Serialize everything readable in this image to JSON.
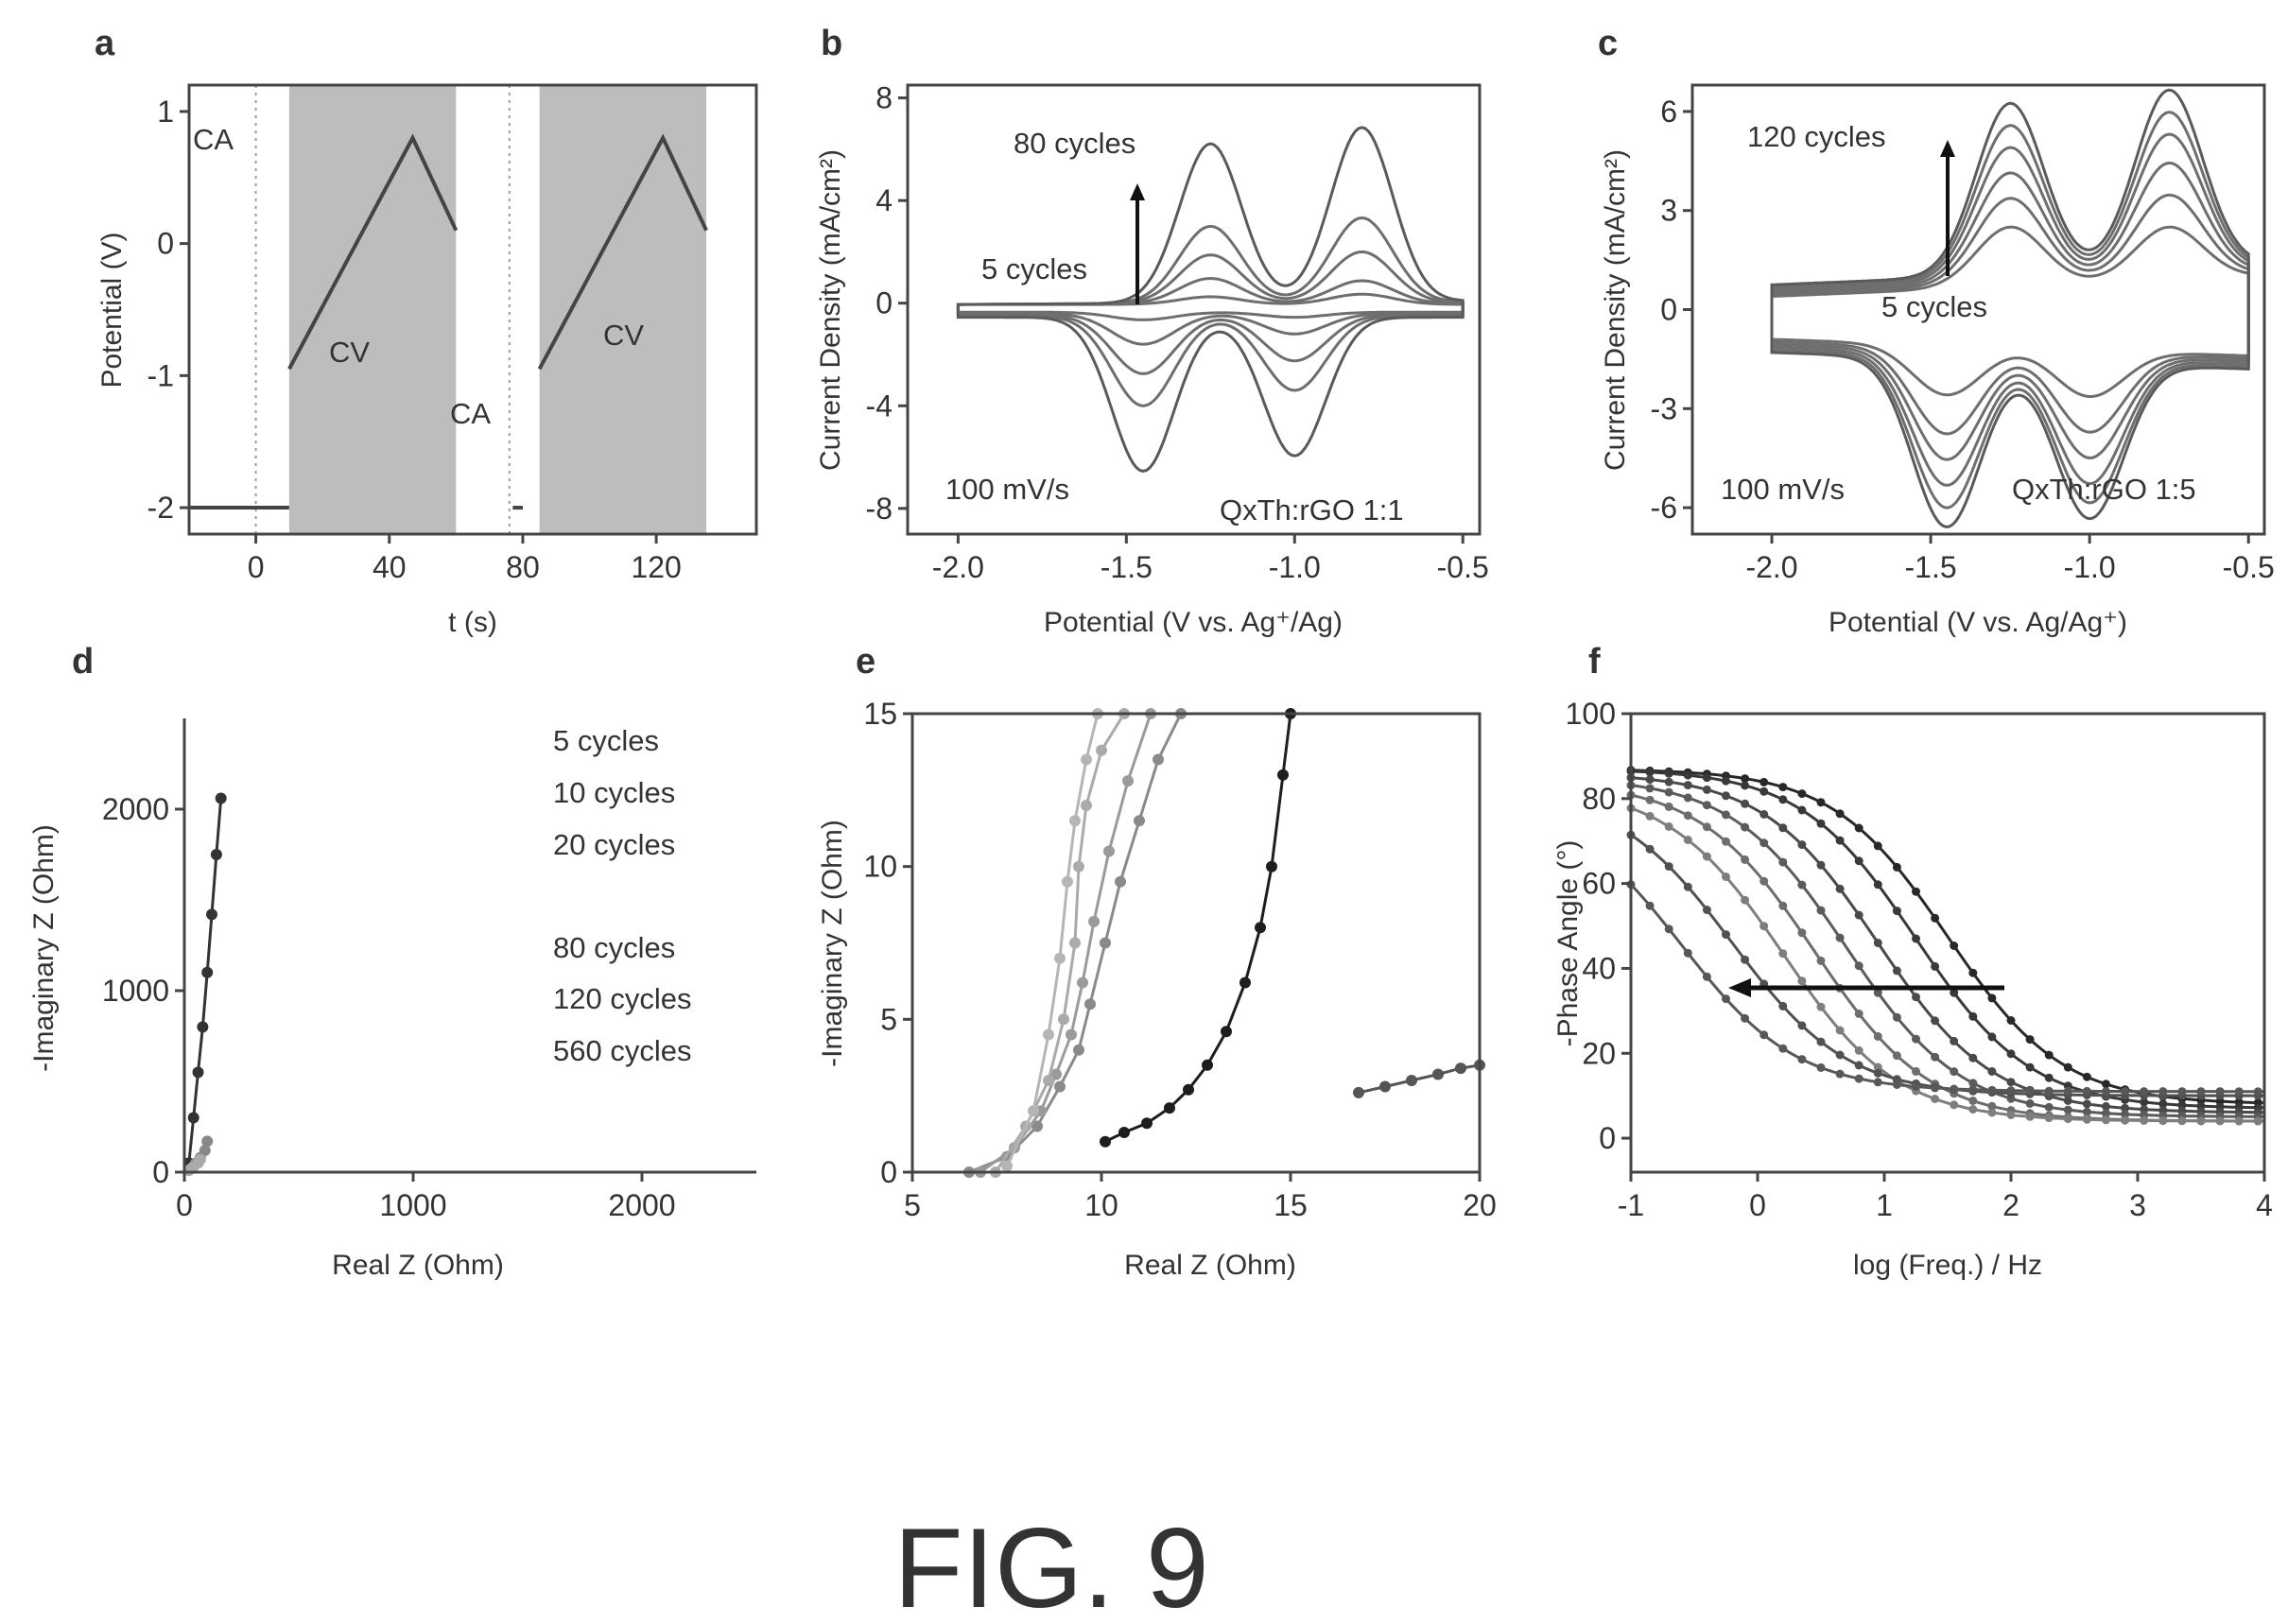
{
  "figure_caption": "FIG. 9",
  "chart_data": [
    {
      "panel": "a",
      "type": "line",
      "xlabel": "t (s)",
      "ylabel": "Potential (V)",
      "xlim": [
        -20,
        150
      ],
      "ylim": [
        -2.2,
        1.2
      ],
      "xticks": [
        0,
        40,
        80,
        120
      ],
      "yticks": [
        1,
        0,
        -1,
        -2
      ],
      "shaded_regions": [
        [
          10,
          60
        ],
        [
          85,
          135
        ]
      ],
      "annotations": [
        "CA",
        "CV",
        "CA",
        "CV"
      ],
      "series": [
        {
          "x": [
            -20,
            0,
            0.5,
            3,
            5.5,
            6,
            10
          ],
          "y": [
            -2.0,
            -2.0,
            -2.0,
            -2.0,
            -2.0,
            -2.0,
            -2.0
          ]
        },
        {
          "x": [
            10,
            47,
            60
          ],
          "y": [
            -0.95,
            0.8,
            0.1
          ]
        },
        {
          "x": [
            85,
            122,
            135
          ],
          "y": [
            -0.95,
            0.8,
            0.1
          ]
        }
      ]
    },
    {
      "panel": "b",
      "type": "line",
      "xlabel": "Potential (V vs. Ag⁺/Ag)",
      "ylabel": "Current Density (mA/cm²)",
      "xlim": [
        -2.15,
        -0.45
      ],
      "ylim": [
        -9,
        8.5
      ],
      "xticks": [
        -2.0,
        -1.5,
        -1.0,
        -0.5
      ],
      "yticks": [
        8,
        4,
        0,
        -4,
        -8
      ],
      "annotations": [
        "80 cycles",
        "5 cycles",
        "100 mV/s",
        "QxTh:rGO 1:1"
      ],
      "peaks": {
        "oxidation_potentials": [
          -1.25,
          -0.8
        ],
        "reduction_potentials": [
          -1.45,
          -1.0
        ]
      },
      "curves": [
        {
          "cycles": "5",
          "anodic_peaks": [
            0.3,
            0.4
          ],
          "cathodic_peaks": [
            -0.3,
            -0.2
          ]
        },
        {
          "anodic_peaks": [
            1.0,
            0.9
          ],
          "cathodic_peaks": [
            -1.2,
            -0.8
          ]
        },
        {
          "anodic_peaks": [
            1.9,
            2.0
          ],
          "cathodic_peaks": [
            -2.3,
            -1.8
          ]
        },
        {
          "anodic_peaks": [
            3.0,
            3.3
          ],
          "cathodic_peaks": [
            -3.5,
            -2.9
          ]
        },
        {
          "cycles": "80",
          "anodic_peaks": [
            6.2,
            6.8
          ],
          "cathodic_peaks": [
            -6.0,
            -5.4
          ]
        }
      ]
    },
    {
      "panel": "c",
      "type": "line",
      "xlabel": "Potential (V vs. Ag/Ag⁺)",
      "ylabel": "Current Density (mA/cm²)",
      "xlim": [
        -2.25,
        -0.45
      ],
      "ylim": [
        -6.8,
        6.8
      ],
      "xticks": [
        -2.0,
        -1.5,
        -1.0,
        -0.5
      ],
      "yticks": [
        6,
        3,
        0,
        -3,
        -6
      ],
      "annotations": [
        "120 cycles",
        "5 cycles",
        "100 mV/s",
        "QxTh:rGO 1:5"
      ],
      "peaks": {
        "oxidation_potentials": [
          -1.25,
          -0.75
        ],
        "reduction_potentials": [
          -1.45,
          -1.0
        ]
      },
      "curves": [
        {
          "cycles": "5",
          "anodic_peaks": [
            1.8,
            1.6
          ],
          "cathodic_peaks": [
            -1.5,
            -1.4
          ]
        },
        {
          "anodic_peaks": [
            2.6,
            2.5
          ],
          "cathodic_peaks": [
            -2.6,
            -2.4
          ]
        },
        {
          "anodic_peaks": [
            3.3,
            3.4
          ],
          "cathodic_peaks": [
            -3.3,
            -3.1
          ]
        },
        {
          "anodic_peaks": [
            4.0,
            4.2
          ],
          "cathodic_peaks": [
            -4.0,
            -3.8
          ]
        },
        {
          "anodic_peaks": [
            4.6,
            4.8
          ],
          "cathodic_peaks": [
            -4.6,
            -4.3
          ]
        },
        {
          "cycles": "120",
          "anodic_peaks": [
            5.2,
            5.4
          ],
          "cathodic_peaks": [
            -5.1,
            -4.7
          ]
        }
      ]
    },
    {
      "panel": "d",
      "type": "scatter",
      "xlabel": "Real Z (Ohm)",
      "ylabel": "-Imaginary Z (Ohm)",
      "xlim": [
        0,
        2500
      ],
      "ylim": [
        0,
        2500
      ],
      "xticks": [
        0,
        1000,
        2000
      ],
      "yticks": [
        0,
        1000,
        2000
      ],
      "legend": [
        "5 cycles",
        "10 cycles",
        "20 cycles",
        "80 cycles",
        "120 cycles",
        "560 cycles"
      ],
      "legend_colors": [
        "#333333",
        "#777777",
        "#bbbbbb",
        "#aaaaaa",
        "#8a8a8a",
        "#444444"
      ],
      "series": [
        {
          "name": "560 cycles",
          "x": [
            20,
            40,
            60,
            80,
            100,
            120,
            140,
            160
          ],
          "y": [
            50,
            300,
            550,
            800,
            1100,
            1420,
            1750,
            2060
          ]
        },
        {
          "x": [
            30,
            50,
            70,
            90,
            100
          ],
          "y": [
            20,
            50,
            80,
            120,
            170
          ]
        },
        {
          "x": [
            20,
            40,
            60,
            70
          ],
          "y": [
            10,
            30,
            50,
            70
          ]
        }
      ]
    },
    {
      "panel": "e",
      "type": "scatter",
      "xlabel": "Real Z (Ohm)",
      "ylabel": "-Imaginary Z (Ohm)",
      "xlim": [
        5,
        20
      ],
      "ylim": [
        0,
        15
      ],
      "xticks": [
        5,
        10,
        15,
        20
      ],
      "yticks": [
        0,
        5,
        10,
        15
      ],
      "series": [
        {
          "x": [
            10.1,
            10.6,
            11.2,
            11.8,
            12.3,
            12.8,
            13.3,
            13.8,
            14.2,
            14.5,
            14.8,
            15.0
          ],
          "y": [
            1.0,
            1.3,
            1.6,
            2.1,
            2.7,
            3.5,
            4.6,
            6.2,
            8.0,
            10.0,
            13.0,
            15.0
          ]
        },
        {
          "x": [
            16.8,
            17.5,
            18.2,
            18.9,
            19.5,
            20.0
          ],
          "y": [
            2.6,
            2.8,
            3.0,
            3.2,
            3.4,
            3.5
          ]
        },
        {
          "x": [
            6.5,
            7.5,
            8.3,
            8.9,
            9.4,
            9.7,
            10.1,
            10.5,
            11.0,
            11.5,
            12.1
          ],
          "y": [
            0.0,
            0.5,
            1.5,
            2.8,
            4.0,
            5.5,
            7.5,
            9.5,
            11.5,
            13.5,
            15.0
          ]
        },
        {
          "x": [
            6.8,
            7.7,
            8.4,
            8.8,
            9.2,
            9.5,
            9.8,
            10.2,
            10.7,
            11.3
          ],
          "y": [
            0.0,
            0.8,
            2.0,
            3.2,
            4.5,
            6.2,
            8.2,
            10.5,
            12.8,
            15.0
          ]
        },
        {
          "x": [
            7.2,
            8.0,
            8.6,
            9.0,
            9.3,
            9.4,
            9.6,
            10.0,
            10.6
          ],
          "y": [
            0.0,
            1.5,
            3.0,
            5.0,
            7.5,
            10.0,
            12.0,
            13.8,
            15.0
          ]
        },
        {
          "x": [
            7.5,
            8.2,
            8.6,
            8.9,
            9.1,
            9.3,
            9.6,
            9.9
          ],
          "y": [
            0.2,
            2.0,
            4.5,
            7.0,
            9.5,
            11.5,
            13.5,
            15.0
          ]
        }
      ]
    },
    {
      "panel": "f",
      "type": "line",
      "xlabel": "log (Freq.) / Hz",
      "ylabel": "-Phase Angle (°)",
      "xlim": [
        -1,
        4
      ],
      "ylim": [
        -8,
        100
      ],
      "xticks": [
        -1,
        0,
        1,
        2,
        3,
        4
      ],
      "yticks": [
        0,
        20,
        40,
        60,
        80,
        100
      ],
      "curves": [
        {
          "low_freq_angle": 87,
          "midpoint_log_freq": 1.5,
          "high_freq_angle": 8
        },
        {
          "low_freq_angle": 87,
          "midpoint_log_freq": 1.25,
          "high_freq_angle": 7
        },
        {
          "low_freq_angle": 86,
          "midpoint_log_freq": 0.95,
          "high_freq_angle": 6
        },
        {
          "low_freq_angle": 85,
          "midpoint_log_freq": 0.7,
          "high_freq_angle": 5
        },
        {
          "low_freq_angle": 84,
          "midpoint_log_freq": 0.45,
          "high_freq_angle": 4
        },
        {
          "low_freq_angle": 83,
          "midpoint_log_freq": 0.2,
          "high_freq_angle": 4
        },
        {
          "low_freq_angle": 82,
          "midpoint_log_freq": -0.2,
          "high_freq_angle": 10
        },
        {
          "low_freq_angle": 80,
          "midpoint_log_freq": -0.6,
          "high_freq_angle": 11
        }
      ]
    }
  ]
}
